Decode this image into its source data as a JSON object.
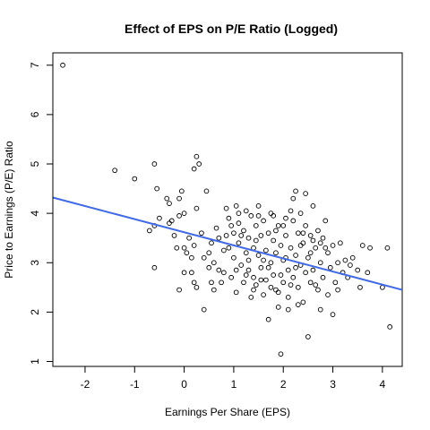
{
  "chart_data": {
    "type": "scatter",
    "title": "Effect of EPS on P/E Ratio (Logged)",
    "xlabel": "Earnings Per Share (EPS)",
    "ylabel": "Price to Earnings (P/E) Ratio",
    "xlim": [
      -2.65,
      4.4
    ],
    "ylim": [
      0.9,
      7.25
    ],
    "xticks": [
      -2,
      -1,
      0,
      1,
      2,
      3,
      4
    ],
    "yticks": [
      1,
      2,
      3,
      4,
      5,
      6,
      7
    ],
    "grid": false,
    "legend": "none",
    "colors": {
      "points": "#000000",
      "regression_line": "#4169E1"
    },
    "regression_line": {
      "x": [
        -2.65,
        4.4
      ],
      "y": [
        4.32,
        2.45
      ]
    },
    "points": [
      {
        "x": -2.45,
        "y": 7.0
      },
      {
        "x": -1.4,
        "y": 4.87
      },
      {
        "x": -1.0,
        "y": 4.7
      },
      {
        "x": -0.6,
        "y": 5.0
      },
      {
        "x": -0.55,
        "y": 4.5
      },
      {
        "x": -0.6,
        "y": 3.75
      },
      {
        "x": -0.7,
        "y": 3.65
      },
      {
        "x": -0.5,
        "y": 3.9
      },
      {
        "x": -0.35,
        "y": 4.3
      },
      {
        "x": -0.3,
        "y": 4.2
      },
      {
        "x": -0.3,
        "y": 3.8
      },
      {
        "x": -0.25,
        "y": 3.85
      },
      {
        "x": -0.2,
        "y": 3.55
      },
      {
        "x": -0.6,
        "y": 2.9
      },
      {
        "x": -0.05,
        "y": 4.45
      },
      {
        "x": -0.1,
        "y": 4.3
      },
      {
        "x": -0.1,
        "y": 3.95
      },
      {
        "x": 0.0,
        "y": 4.0
      },
      {
        "x": 0.2,
        "y": 4.9
      },
      {
        "x": 0.25,
        "y": 5.15
      },
      {
        "x": 0.3,
        "y": 5.0
      },
      {
        "x": 0.25,
        "y": 4.1
      },
      {
        "x": 0.45,
        "y": 4.45
      },
      {
        "x": -0.15,
        "y": 3.3
      },
      {
        "x": 0.0,
        "y": 3.3
      },
      {
        "x": 0.05,
        "y": 3.2
      },
      {
        "x": 0.1,
        "y": 3.5
      },
      {
        "x": 0.15,
        "y": 3.1
      },
      {
        "x": 0.2,
        "y": 3.35
      },
      {
        "x": 0.0,
        "y": 2.8
      },
      {
        "x": -0.1,
        "y": 2.45
      },
      {
        "x": 0.15,
        "y": 2.8
      },
      {
        "x": 0.2,
        "y": 2.6
      },
      {
        "x": 0.25,
        "y": 2.5
      },
      {
        "x": 0.4,
        "y": 2.05
      },
      {
        "x": 0.35,
        "y": 3.6
      },
      {
        "x": 0.4,
        "y": 3.1
      },
      {
        "x": 0.5,
        "y": 3.2
      },
      {
        "x": 0.5,
        "y": 2.9
      },
      {
        "x": 0.55,
        "y": 3.4
      },
      {
        "x": 0.6,
        "y": 3.0
      },
      {
        "x": 0.6,
        "y": 2.45
      },
      {
        "x": 0.65,
        "y": 3.7
      },
      {
        "x": 0.7,
        "y": 3.5
      },
      {
        "x": 0.75,
        "y": 2.6
      },
      {
        "x": 0.8,
        "y": 3.25
      },
      {
        "x": 0.8,
        "y": 2.8
      },
      {
        "x": 0.85,
        "y": 4.1
      },
      {
        "x": 0.9,
        "y": 3.9
      },
      {
        "x": 0.9,
        "y": 3.3
      },
      {
        "x": 0.95,
        "y": 2.7
      },
      {
        "x": 1.0,
        "y": 3.6
      },
      {
        "x": 1.0,
        "y": 3.1
      },
      {
        "x": 1.05,
        "y": 2.4
      },
      {
        "x": 1.05,
        "y": 4.15
      },
      {
        "x": 1.1,
        "y": 3.8
      },
      {
        "x": 1.1,
        "y": 3.4
      },
      {
        "x": 1.15,
        "y": 2.95
      },
      {
        "x": 1.2,
        "y": 3.65
      },
      {
        "x": 1.2,
        "y": 2.6
      },
      {
        "x": 1.25,
        "y": 4.05
      },
      {
        "x": 1.25,
        "y": 3.2
      },
      {
        "x": 1.3,
        "y": 3.5
      },
      {
        "x": 1.3,
        "y": 2.85
      },
      {
        "x": 1.35,
        "y": 2.3
      },
      {
        "x": 1.35,
        "y": 3.95
      },
      {
        "x": 1.4,
        "y": 3.3
      },
      {
        "x": 1.4,
        "y": 2.7
      },
      {
        "x": 1.45,
        "y": 3.75
      },
      {
        "x": 1.45,
        "y": 2.55
      },
      {
        "x": 1.5,
        "y": 3.15
      },
      {
        "x": 1.5,
        "y": 4.15
      },
      {
        "x": 1.55,
        "y": 3.55
      },
      {
        "x": 1.55,
        "y": 2.9
      },
      {
        "x": 1.6,
        "y": 2.35
      },
      {
        "x": 1.6,
        "y": 3.85
      },
      {
        "x": 1.65,
        "y": 3.25
      },
      {
        "x": 1.65,
        "y": 2.65
      },
      {
        "x": 1.7,
        "y": 3.6
      },
      {
        "x": 1.7,
        "y": 1.85
      },
      {
        "x": 1.75,
        "y": 3.0
      },
      {
        "x": 1.75,
        "y": 4.0
      },
      {
        "x": 1.8,
        "y": 3.45
      },
      {
        "x": 1.8,
        "y": 2.75
      },
      {
        "x": 1.85,
        "y": 3.2
      },
      {
        "x": 1.85,
        "y": 2.45
      },
      {
        "x": 1.9,
        "y": 3.75
      },
      {
        "x": 1.9,
        "y": 2.1
      },
      {
        "x": 1.95,
        "y": 3.35
      },
      {
        "x": 1.95,
        "y": 1.15
      },
      {
        "x": 2.0,
        "y": 3.05
      },
      {
        "x": 2.0,
        "y": 2.6
      },
      {
        "x": 2.05,
        "y": 3.55
      },
      {
        "x": 2.05,
        "y": 3.9
      },
      {
        "x": 2.1,
        "y": 2.85
      },
      {
        "x": 2.1,
        "y": 2.3
      },
      {
        "x": 2.15,
        "y": 3.3
      },
      {
        "x": 2.15,
        "y": 4.05
      },
      {
        "x": 2.2,
        "y": 4.3
      },
      {
        "x": 2.2,
        "y": 2.7
      },
      {
        "x": 2.25,
        "y": 4.45
      },
      {
        "x": 2.25,
        "y": 3.15
      },
      {
        "x": 2.3,
        "y": 3.6
      },
      {
        "x": 2.3,
        "y": 2.5
      },
      {
        "x": 2.35,
        "y": 2.95
      },
      {
        "x": 2.35,
        "y": 4.0
      },
      {
        "x": 2.4,
        "y": 3.4
      },
      {
        "x": 2.4,
        "y": 2.2
      },
      {
        "x": 2.45,
        "y": 3.75
      },
      {
        "x": 2.45,
        "y": 4.4
      },
      {
        "x": 2.5,
        "y": 3.1
      },
      {
        "x": 2.5,
        "y": 1.5
      },
      {
        "x": 2.55,
        "y": 2.6
      },
      {
        "x": 2.55,
        "y": 3.55
      },
      {
        "x": 2.6,
        "y": 2.85
      },
      {
        "x": 2.6,
        "y": 4.15
      },
      {
        "x": 2.65,
        "y": 3.3
      },
      {
        "x": 2.7,
        "y": 2.45
      },
      {
        "x": 2.7,
        "y": 3.65
      },
      {
        "x": 2.75,
        "y": 2.05
      },
      {
        "x": 2.75,
        "y": 3.0
      },
      {
        "x": 2.8,
        "y": 3.5
      },
      {
        "x": 2.8,
        "y": 2.7
      },
      {
        "x": 2.85,
        "y": 3.85
      },
      {
        "x": 2.9,
        "y": 3.2
      },
      {
        "x": 2.9,
        "y": 2.35
      },
      {
        "x": 2.95,
        "y": 2.9
      },
      {
        "x": 3.0,
        "y": 3.35
      },
      {
        "x": 3.0,
        "y": 1.95
      },
      {
        "x": 3.05,
        "y": 2.6
      },
      {
        "x": 3.1,
        "y": 3.0
      },
      {
        "x": 3.15,
        "y": 3.4
      },
      {
        "x": 3.2,
        "y": 2.8
      },
      {
        "x": 3.25,
        "y": 3.05
      },
      {
        "x": 3.3,
        "y": 2.7
      },
      {
        "x": 3.4,
        "y": 3.1
      },
      {
        "x": 3.5,
        "y": 2.85
      },
      {
        "x": 3.6,
        "y": 3.35
      },
      {
        "x": 3.7,
        "y": 2.8
      },
      {
        "x": 3.75,
        "y": 3.3
      },
      {
        "x": 4.0,
        "y": 2.5
      },
      {
        "x": 4.1,
        "y": 3.3
      },
      {
        "x": 4.15,
        "y": 1.7
      },
      {
        "x": 0.95,
        "y": 3.75
      },
      {
        "x": 1.15,
        "y": 3.55
      },
      {
        "x": 1.3,
        "y": 3.05
      },
      {
        "x": 1.45,
        "y": 3.45
      },
      {
        "x": 1.6,
        "y": 3.05
      },
      {
        "x": 1.7,
        "y": 2.9
      },
      {
        "x": 1.85,
        "y": 3.65
      },
      {
        "x": 1.95,
        "y": 2.75
      },
      {
        "x": 2.05,
        "y": 3.1
      },
      {
        "x": 2.15,
        "y": 2.55
      },
      {
        "x": 2.25,
        "y": 2.9
      },
      {
        "x": 2.35,
        "y": 3.35
      },
      {
        "x": 2.45,
        "y": 2.8
      },
      {
        "x": 2.55,
        "y": 3.2
      },
      {
        "x": 2.65,
        "y": 2.55
      },
      {
        "x": 2.75,
        "y": 3.4
      },
      {
        "x": 1.05,
        "y": 2.85
      },
      {
        "x": 1.25,
        "y": 2.75
      },
      {
        "x": 1.4,
        "y": 2.45
      },
      {
        "x": 1.55,
        "y": 2.65
      },
      {
        "x": 1.75,
        "y": 2.5
      },
      {
        "x": 1.9,
        "y": 2.4
      },
      {
        "x": 2.1,
        "y": 2.05
      },
      {
        "x": 2.3,
        "y": 2.15
      },
      {
        "x": 0.7,
        "y": 2.85
      },
      {
        "x": 0.85,
        "y": 3.55
      },
      {
        "x": 0.55,
        "y": 2.6
      },
      {
        "x": 1.1,
        "y": 4.0
      },
      {
        "x": 1.5,
        "y": 3.95
      },
      {
        "x": 1.8,
        "y": 3.95
      },
      {
        "x": 2.0,
        "y": 3.75
      },
      {
        "x": 2.2,
        "y": 3.85
      },
      {
        "x": 2.4,
        "y": 3.6
      },
      {
        "x": 2.6,
        "y": 3.45
      },
      {
        "x": 2.85,
        "y": 3.3
      },
      {
        "x": 3.1,
        "y": 2.45
      },
      {
        "x": 3.35,
        "y": 2.95
      },
      {
        "x": 3.55,
        "y": 2.5
      }
    ]
  }
}
